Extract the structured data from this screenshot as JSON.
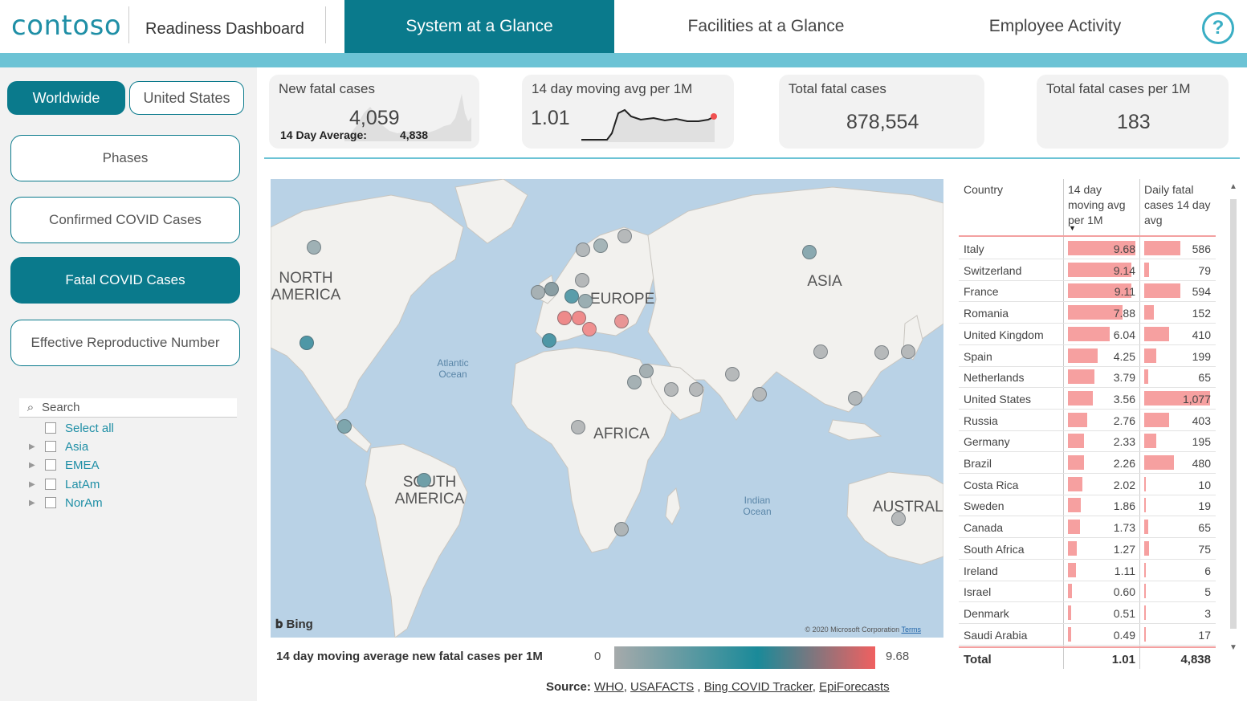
{
  "header": {
    "logo": "contoso",
    "title": "Readiness Dashboard",
    "tabs": [
      {
        "label": "System at a Glance",
        "active": true
      },
      {
        "label": "Facilities at a Glance",
        "active": false
      },
      {
        "label": "Employee Activity",
        "active": false
      }
    ],
    "help_icon": "?"
  },
  "scope": {
    "options": [
      {
        "label": "Worldwide",
        "selected": true
      },
      {
        "label": "United States",
        "selected": false
      }
    ]
  },
  "menu": {
    "items": [
      {
        "label": "Phases",
        "selected": false
      },
      {
        "label": "Confirmed COVID Cases",
        "selected": false
      },
      {
        "label": "Fatal COVID Cases",
        "selected": true
      },
      {
        "label": "Effective Reproductive Number",
        "selected": false
      }
    ]
  },
  "slicer": {
    "search_placeholder": "Search",
    "select_all": "Select all",
    "regions": [
      "Asia",
      "EMEA",
      "LatAm",
      "NorAm"
    ]
  },
  "kpis": {
    "new_fatal": {
      "title": "New fatal cases",
      "value": "4,059",
      "avg_label": "14 Day Average:",
      "avg_value": "4,838"
    },
    "moving_avg": {
      "title": "14 day moving avg per 1M",
      "value": "1.01"
    },
    "total_fatal": {
      "title": "Total fatal cases",
      "value": "878,554"
    },
    "total_per_1m": {
      "title": "Total fatal cases per 1M",
      "value": "183"
    }
  },
  "map": {
    "continents": [
      "NORTH AMERICA",
      "EUROPE",
      "ASIA",
      "AFRICA",
      "SOUTH AMERICA",
      "AUSTRALIA"
    ],
    "oceans": [
      "Atlantic Ocean",
      "Indian Ocean"
    ],
    "provider": "Bing",
    "copyright": "© 2020 Microsoft Corporation",
    "terms": "Terms",
    "legend_title": "14 day moving average new fatal cases per 1M",
    "legend_min": "0",
    "legend_max": "9.68",
    "colors": {
      "low": "#a6aaab",
      "mid": "#1a8a99",
      "high": "#f06060"
    }
  },
  "source": {
    "label": "Source:",
    "links": [
      "WHO",
      "USAFACTS",
      "Bing COVID Tracker",
      "EpiForecasts"
    ]
  },
  "table": {
    "columns": [
      "Country",
      "14 day moving avg per 1M",
      "Daily fatal cases 14 day avg"
    ],
    "rows": [
      {
        "country": "Italy",
        "avg": "9.68",
        "daily": "586"
      },
      {
        "country": "Switzerland",
        "avg": "9.14",
        "daily": "79"
      },
      {
        "country": "France",
        "avg": "9.11",
        "daily": "594"
      },
      {
        "country": "Romania",
        "avg": "7.88",
        "daily": "152"
      },
      {
        "country": "United Kingdom",
        "avg": "6.04",
        "daily": "410"
      },
      {
        "country": "Spain",
        "avg": "4.25",
        "daily": "199"
      },
      {
        "country": "Netherlands",
        "avg": "3.79",
        "daily": "65"
      },
      {
        "country": "United States",
        "avg": "3.56",
        "daily": "1,077"
      },
      {
        "country": "Russia",
        "avg": "2.76",
        "daily": "403"
      },
      {
        "country": "Germany",
        "avg": "2.33",
        "daily": "195"
      },
      {
        "country": "Brazil",
        "avg": "2.26",
        "daily": "480"
      },
      {
        "country": "Costa Rica",
        "avg": "2.02",
        "daily": "10"
      },
      {
        "country": "Sweden",
        "avg": "1.86",
        "daily": "19"
      },
      {
        "country": "Canada",
        "avg": "1.73",
        "daily": "65"
      },
      {
        "country": "South Africa",
        "avg": "1.27",
        "daily": "75"
      },
      {
        "country": "Ireland",
        "avg": "1.11",
        "daily": "6"
      },
      {
        "country": "Israel",
        "avg": "0.60",
        "daily": "5"
      },
      {
        "country": "Denmark",
        "avg": "0.51",
        "daily": "3"
      },
      {
        "country": "Saudi Arabia",
        "avg": "0.49",
        "daily": "17"
      }
    ],
    "total": {
      "label": "Total",
      "avg": "1.01",
      "daily": "4,838"
    }
  }
}
